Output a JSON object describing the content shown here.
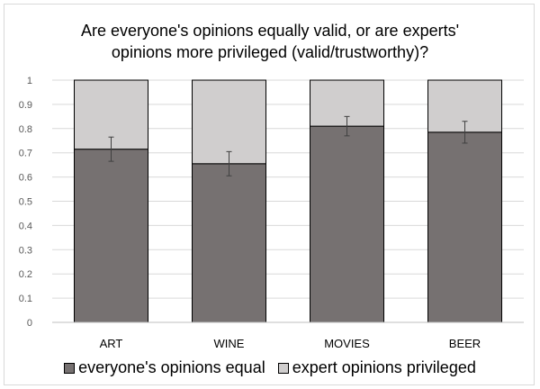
{
  "chart_data": {
    "type": "bar",
    "stacked": true,
    "title_lines": [
      "Are everyone's opinions equally valid, or are experts'",
      "opinions more privileged (valid/trustworthy)?"
    ],
    "categories": [
      "ART",
      "WINE",
      "MOVIES",
      "BEER"
    ],
    "series": [
      {
        "name": "everyone's opinions equal",
        "values": [
          0.715,
          0.655,
          0.81,
          0.785
        ],
        "color": "#767171",
        "errors": [
          0.05,
          0.05,
          0.04,
          0.045
        ]
      },
      {
        "name": "expert opinions privileged",
        "values": [
          0.285,
          0.345,
          0.19,
          0.215
        ],
        "color": "#d0cece"
      }
    ],
    "ylim": [
      0,
      1
    ],
    "yticks": [
      "0",
      "0.1",
      "0.2",
      "0.3",
      "0.4",
      "0.5",
      "0.6",
      "0.7",
      "0.8",
      "0.9",
      "1"
    ],
    "grid": true,
    "legend_position": "bottom"
  }
}
